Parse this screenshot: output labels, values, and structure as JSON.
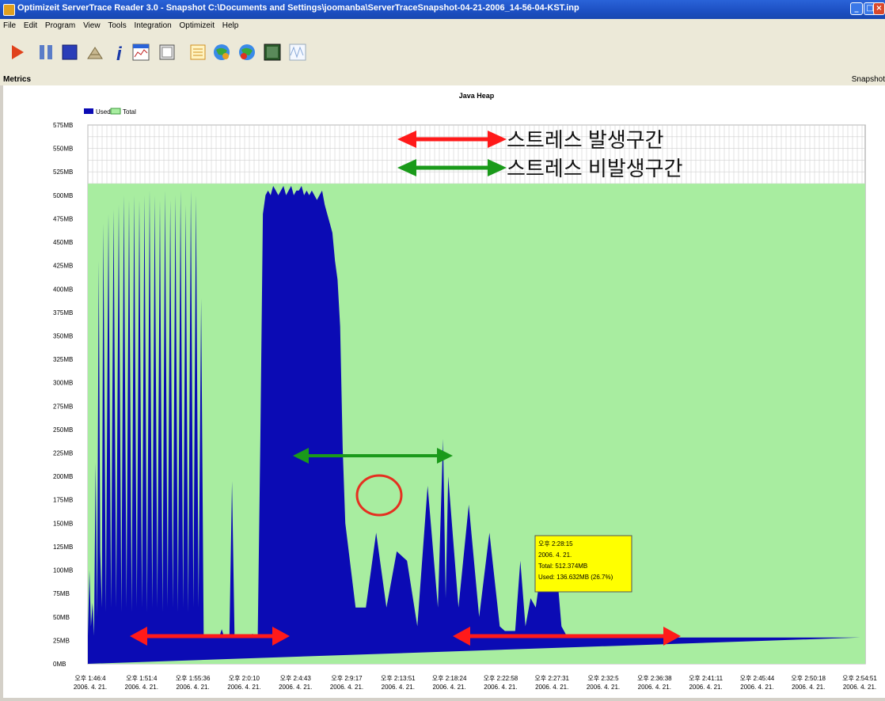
{
  "window": {
    "title": "Optimizeit ServerTrace Reader 3.0 - Snapshot C:\\Documents and Settings\\joomanba\\ServerTraceSnapshot-04-21-2006_14-56-04-KST.inp"
  },
  "menu": [
    "File",
    "Edit",
    "Program",
    "View",
    "Tools",
    "Integration",
    "Optimizeit",
    "Help"
  ],
  "toolbar_icons": [
    "play-icon",
    "pause-icon",
    "stop-icon",
    "settings-icon",
    "info-icon",
    "chart-window-icon",
    "snapshot-icon",
    "list-icon",
    "globe-icon",
    "globe-refresh-icon",
    "monitor-icon",
    "waveform-icon"
  ],
  "metrics_bar": {
    "label": "Metrics",
    "right_label": "Snapshot"
  },
  "annotations": {
    "stress_label": "스트레스 발생구간",
    "nonstress_label": "스트레스 비발생구간"
  },
  "tooltip": {
    "lines": [
      "오후 2:28:15",
      "2006. 4. 21.",
      "Total: 512.374MB",
      "Used: 136.632MB (26.7%)"
    ]
  },
  "colors": {
    "used": "#0b0bb4",
    "total": "#a8eda0",
    "stress_arrow": "#ff1a1a",
    "nonstress_arrow": "#1a9a1a",
    "tooltip_bg": "#ffff00",
    "circle": "#e53020"
  },
  "chart_data": {
    "type": "area",
    "title": "Java Heap",
    "legend": [
      "Used",
      "Total"
    ],
    "legend_position": "top-left",
    "grid": true,
    "ylim": [
      0,
      575
    ],
    "y_unit": "MB",
    "y_ticks": [
      "0MB",
      "25MB",
      "50MB",
      "75MB",
      "100MB",
      "125MB",
      "150MB",
      "175MB",
      "200MB",
      "225MB",
      "250MB",
      "275MB",
      "300MB",
      "325MB",
      "350MB",
      "375MB",
      "400MB",
      "425MB",
      "450MB",
      "475MB",
      "500MB",
      "525MB",
      "550MB",
      "575MB"
    ],
    "x_ticks": [
      {
        "time": "오후 1:46:4",
        "date": "2006. 4. 21."
      },
      {
        "time": "오후 1:51:4",
        "date": "2006. 4. 21."
      },
      {
        "time": "오후 1:55:36",
        "date": "2006. 4. 21."
      },
      {
        "time": "오후 2:0:10",
        "date": "2006. 4. 21."
      },
      {
        "time": "오후 2:4:43",
        "date": "2006. 4. 21."
      },
      {
        "time": "오후 2:9:17",
        "date": "2006. 4. 21."
      },
      {
        "time": "오후 2:13:51",
        "date": "2006. 4. 21."
      },
      {
        "time": "오후 2:18:24",
        "date": "2006. 4. 21."
      },
      {
        "time": "오후 2:22:58",
        "date": "2006. 4. 21."
      },
      {
        "time": "오후 2:27:31",
        "date": "2006. 4. 21."
      },
      {
        "time": "오후 2:32:5",
        "date": "2006. 4. 21."
      },
      {
        "time": "오후 2:36:38",
        "date": "2006. 4. 21."
      },
      {
        "time": "오후 2:41:11",
        "date": "2006. 4. 21."
      },
      {
        "time": "오후 2:45:44",
        "date": "2006. 4. 21."
      },
      {
        "time": "오후 2:50:18",
        "date": "2006. 4. 21."
      },
      {
        "time": "오후 2:54:51",
        "date": "2006. 4. 21."
      }
    ],
    "total_mb": 512.374,
    "used_series": {
      "x": [
        0,
        0.03,
        0.06,
        0.09,
        0.12,
        0.15,
        0.18,
        0.21,
        0.24,
        0.27,
        0.3,
        0.35,
        0.4,
        0.45,
        0.5,
        0.55,
        0.6,
        0.65,
        0.7,
        0.75,
        0.8,
        0.85,
        0.9,
        0.95,
        1.0,
        1.05,
        1.1,
        1.15,
        1.2,
        1.25,
        1.3,
        1.35,
        1.4,
        1.45,
        1.5,
        1.55,
        1.6,
        1.65,
        1.7,
        1.75,
        1.8,
        1.85,
        1.9,
        1.95,
        2.0,
        2.05,
        2.1,
        2.15,
        2.2,
        2.25,
        2.3,
        2.35,
        2.4,
        2.45,
        2.5,
        2.55,
        2.6,
        2.65,
        2.7,
        2.75,
        2.8,
        2.85,
        2.9,
        2.95,
        3.0,
        3.05,
        3.1,
        3.15,
        3.2,
        3.25,
        3.3,
        3.35,
        3.4,
        3.45,
        3.5,
        3.55,
        3.6,
        3.65,
        3.7,
        3.75,
        3.8,
        3.85,
        3.9,
        3.95,
        4.0,
        4.05,
        4.1,
        4.15,
        4.2,
        4.25,
        4.3,
        4.35,
        4.4,
        4.45,
        4.5,
        4.55,
        4.6,
        4.65,
        4.7,
        4.75,
        4.8,
        4.85,
        4.9,
        4.95,
        5.0,
        5.2,
        5.4,
        5.6,
        5.8,
        6.0,
        6.2,
        6.4,
        6.6,
        6.8,
        6.9,
        6.95,
        7.0,
        7.2,
        7.4,
        7.6,
        7.8,
        8.0,
        8.1,
        8.2,
        8.3,
        8.4,
        8.5,
        8.6,
        8.7,
        8.8,
        8.9,
        9.0,
        9.1,
        9.2,
        9.3,
        9.4,
        9.5,
        9.6,
        9.7,
        9.8,
        9.9,
        10.0,
        10.1,
        10.2,
        10.3,
        10.4,
        10.5,
        10.6,
        10.7,
        10.8,
        10.9,
        11.0,
        11.1,
        11.2,
        11.3,
        11.4,
        11.5,
        11.6,
        11.7,
        11.8,
        11.9,
        12.0,
        12.1,
        12.2,
        12.3,
        12.4,
        12.5,
        12.6,
        12.7,
        12.8,
        12.9,
        13.0,
        13.1,
        13.2,
        13.3,
        13.4,
        13.5,
        13.6,
        13.7,
        13.8,
        13.9,
        14.0,
        14.1,
        14.2,
        14.3,
        14.4,
        14.5,
        14.6,
        14.7,
        14.8,
        14.9,
        15.0,
        15.1
      ],
      "used_mb": [
        30,
        100,
        40,
        65,
        30,
        215,
        50,
        430,
        120,
        60,
        470,
        55,
        480,
        60,
        485,
        60,
        490,
        55,
        500,
        60,
        495,
        55,
        500,
        60,
        495,
        60,
        500,
        55,
        505,
        60,
        500,
        60,
        495,
        55,
        505,
        60,
        495,
        60,
        500,
        55,
        505,
        60,
        490,
        55,
        505,
        60,
        500,
        60,
        390,
        30,
        28,
        28,
        28,
        29,
        30,
        28,
        37,
        28,
        28,
        28,
        195,
        28,
        28,
        28,
        29,
        30,
        30,
        31,
        32,
        30,
        30,
        240,
        480,
        500,
        505,
        500,
        510,
        505,
        500,
        505,
        510,
        500,
        505,
        510,
        500,
        505,
        505,
        510,
        500,
        505,
        500,
        505,
        500,
        495,
        500,
        505,
        490,
        480,
        470,
        460,
        430,
        410,
        360,
        230,
        150,
        60,
        60,
        140,
        60,
        120,
        110,
        40,
        190,
        60,
        240,
        70,
        200,
        60,
        170,
        50,
        140,
        40,
        35,
        35,
        35,
        110,
        40,
        70,
        60,
        100,
        90,
        110,
        105,
        40,
        30,
        28,
        28,
        28,
        28,
        28,
        28,
        28,
        28,
        28,
        28,
        28,
        28,
        28,
        28,
        28,
        28,
        28,
        28,
        28,
        28,
        28,
        28,
        28,
        28,
        28,
        28,
        28,
        28,
        28,
        28,
        28,
        28,
        28,
        28,
        28,
        28,
        28,
        28,
        28,
        28,
        28,
        28,
        28,
        28,
        28,
        28,
        28,
        28,
        28,
        28,
        28,
        28,
        28,
        28,
        28,
        28,
        28
      ]
    }
  }
}
